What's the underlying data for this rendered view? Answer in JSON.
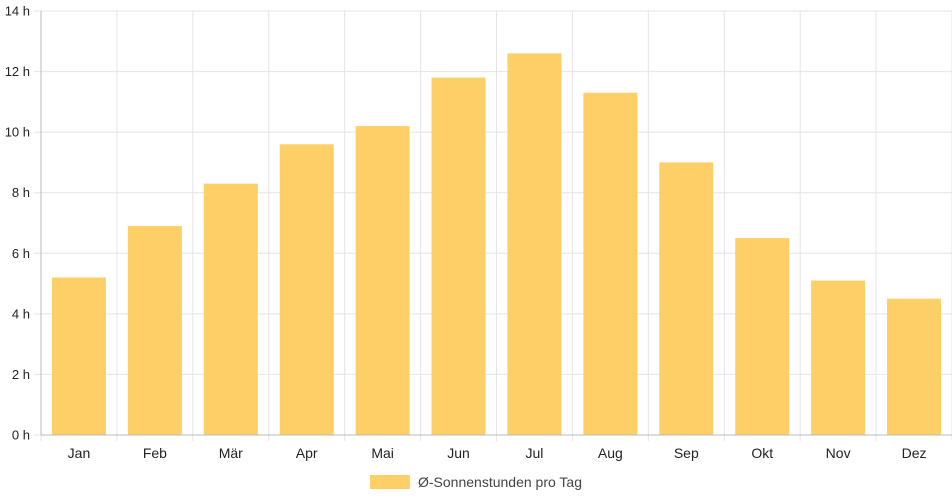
{
  "chart_data": {
    "type": "bar",
    "categories": [
      "Jan",
      "Feb",
      "Mär",
      "Apr",
      "Mai",
      "Jun",
      "Jul",
      "Aug",
      "Sep",
      "Okt",
      "Nov",
      "Dez"
    ],
    "series": [
      {
        "name": "Ø-Sonnenstunden pro Tag",
        "values": [
          5.2,
          6.9,
          8.3,
          9.6,
          10.2,
          11.8,
          12.6,
          11.3,
          9.0,
          6.5,
          5.1,
          4.5
        ],
        "color": "#fdcf66"
      }
    ],
    "yticks": [
      "0 h",
      "2 h",
      "4 h",
      "6 h",
      "8 h",
      "10 h",
      "12 h",
      "14 h"
    ],
    "ylim": [
      0,
      14
    ],
    "grid": true,
    "legend_position": "bottom",
    "gridline_color": "#e4e4e4",
    "axis_color": "#bbbbbb"
  }
}
